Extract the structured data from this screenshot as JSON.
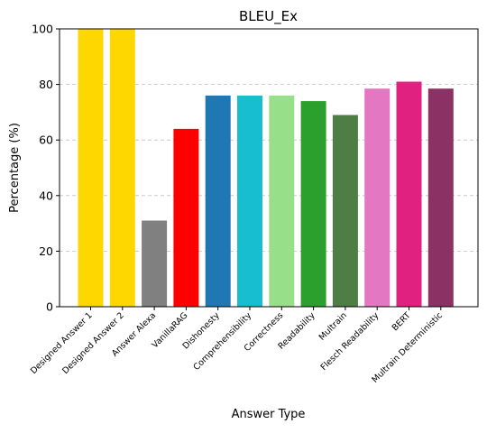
{
  "chart_data": {
    "type": "bar",
    "title": "BLEU_Ex",
    "xlabel": "Answer Type",
    "ylabel": "Percentage (%)",
    "ylim": [
      0,
      100
    ],
    "yticks": [
      0,
      20,
      40,
      60,
      80,
      100
    ],
    "grid": "y-dashed",
    "categories": [
      "Designed Answer 1",
      "Designed Answer 2",
      "Answer Alexa",
      "VanillaRAG",
      "Dishonesty",
      "Comprehensibility",
      "Correctness",
      "Readability",
      "Multrain",
      "Flesch Readability",
      "BERT",
      "Multrain Deterministic"
    ],
    "values": [
      100,
      100,
      31,
      64,
      76,
      76,
      76,
      74,
      69,
      78.5,
      81,
      78.5
    ],
    "colors": [
      "#FFD700",
      "#FFD700",
      "#808080",
      "#FF0000",
      "#1F77B4",
      "#17BECF",
      "#98DF8A",
      "#2CA02C",
      "#4E7D45",
      "#E377C2",
      "#E0217F",
      "#8B3163"
    ]
  }
}
